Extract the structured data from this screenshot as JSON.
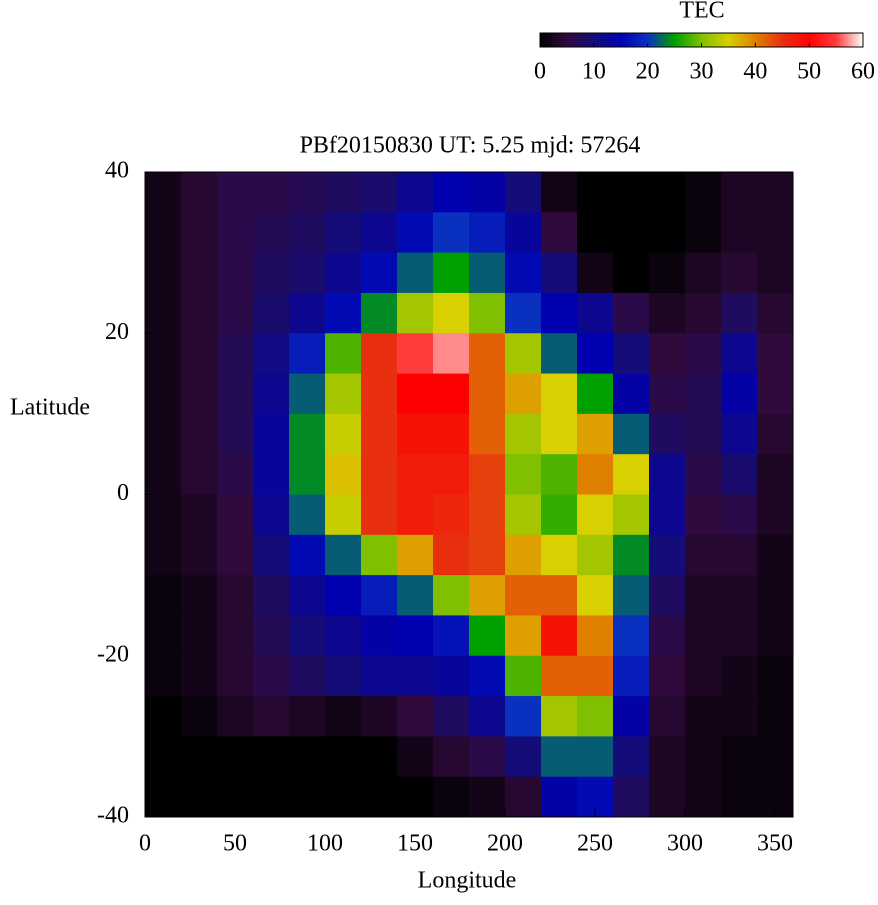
{
  "chart_data": {
    "type": "heatmap",
    "title": "PBf20150830  UT: 5.25  mjd: 57264",
    "x_label": "Longitude",
    "y_label": "Latitude",
    "colorbar_label": "TEC",
    "x": [
      10,
      30,
      50,
      70,
      90,
      110,
      130,
      150,
      170,
      190,
      210,
      230,
      250,
      270,
      290,
      310,
      330,
      350
    ],
    "y": [
      37.5,
      32.5,
      27.5,
      22.5,
      17.5,
      12.5,
      7.5,
      2.5,
      -2.5,
      -7.5,
      -12.5,
      -17.5,
      -22.5,
      -27.5,
      -32.5,
      -37.5
    ],
    "values": [
      [
        2,
        4,
        6,
        6,
        7,
        8,
        9,
        12,
        15,
        14,
        10,
        2,
        0,
        0,
        0,
        1,
        3,
        3
      ],
      [
        2,
        4,
        6,
        7,
        8,
        10,
        12,
        16,
        20,
        18,
        13,
        5,
        0,
        0,
        0,
        1,
        3,
        3
      ],
      [
        2,
        4,
        6,
        8,
        9,
        12,
        16,
        22,
        25,
        22,
        16,
        10,
        2,
        0,
        1,
        3,
        4,
        3
      ],
      [
        2,
        4,
        6,
        9,
        12,
        16,
        24,
        32,
        35,
        30,
        20,
        15,
        12,
        6,
        3,
        4,
        8,
        4
      ],
      [
        2,
        4,
        7,
        11,
        18,
        28,
        45,
        55,
        57,
        42,
        32,
        22,
        15,
        10,
        5,
        6,
        12,
        5
      ],
      [
        2,
        4,
        7,
        12,
        22,
        32,
        45,
        50,
        50,
        42,
        38,
        35,
        25,
        14,
        6,
        7,
        14,
        5
      ],
      [
        2,
        4,
        7,
        13,
        24,
        34,
        45,
        48,
        48,
        42,
        32,
        35,
        38,
        22,
        8,
        7,
        12,
        4
      ],
      [
        2,
        4,
        6,
        13,
        24,
        36,
        45,
        47,
        47,
        44,
        30,
        28,
        40,
        35,
        12,
        6,
        9,
        3
      ],
      [
        2,
        3,
        5,
        12,
        22,
        34,
        45,
        47,
        46,
        44,
        32,
        27,
        35,
        32,
        12,
        5,
        6,
        3
      ],
      [
        2,
        3,
        5,
        10,
        16,
        22,
        30,
        38,
        45,
        44,
        38,
        35,
        32,
        24,
        10,
        4,
        4,
        2
      ],
      [
        1,
        2,
        4,
        8,
        12,
        15,
        18,
        22,
        30,
        38,
        42,
        42,
        35,
        22,
        8,
        3,
        3,
        2
      ],
      [
        1,
        2,
        4,
        7,
        10,
        12,
        14,
        15,
        17,
        25,
        38,
        48,
        40,
        20,
        6,
        3,
        3,
        2
      ],
      [
        1,
        2,
        4,
        6,
        8,
        10,
        12,
        12,
        13,
        16,
        28,
        42,
        42,
        18,
        5,
        3,
        2,
        1
      ],
      [
        0,
        1,
        3,
        4,
        3,
        2,
        3,
        5,
        8,
        12,
        20,
        32,
        30,
        14,
        4,
        2,
        2,
        1
      ],
      [
        0,
        0,
        0,
        0,
        0,
        0,
        0,
        2,
        4,
        6,
        10,
        22,
        22,
        10,
        3,
        2,
        1,
        1
      ],
      [
        0,
        0,
        0,
        0,
        0,
        0,
        0,
        0,
        1,
        2,
        4,
        14,
        16,
        8,
        3,
        2,
        1,
        1
      ]
    ],
    "xlim": [
      0,
      360
    ],
    "xticks": [
      0,
      50,
      100,
      150,
      200,
      250,
      300,
      350
    ],
    "ylim": [
      -40,
      40
    ],
    "yticks": [
      -40,
      -20,
      0,
      20,
      40
    ],
    "clim": [
      0,
      60
    ],
    "cticks": [
      0,
      10,
      20,
      30,
      40,
      50,
      60
    ],
    "colormap": [
      "#000000",
      "#300a3c",
      "#140c78",
      "#0000b0",
      "#0a30c0",
      "#00a000",
      "#80c000",
      "#d8d000",
      "#e08000",
      "#e83010",
      "#ff0000",
      "#ff3c3c",
      "#ffffff"
    ]
  }
}
